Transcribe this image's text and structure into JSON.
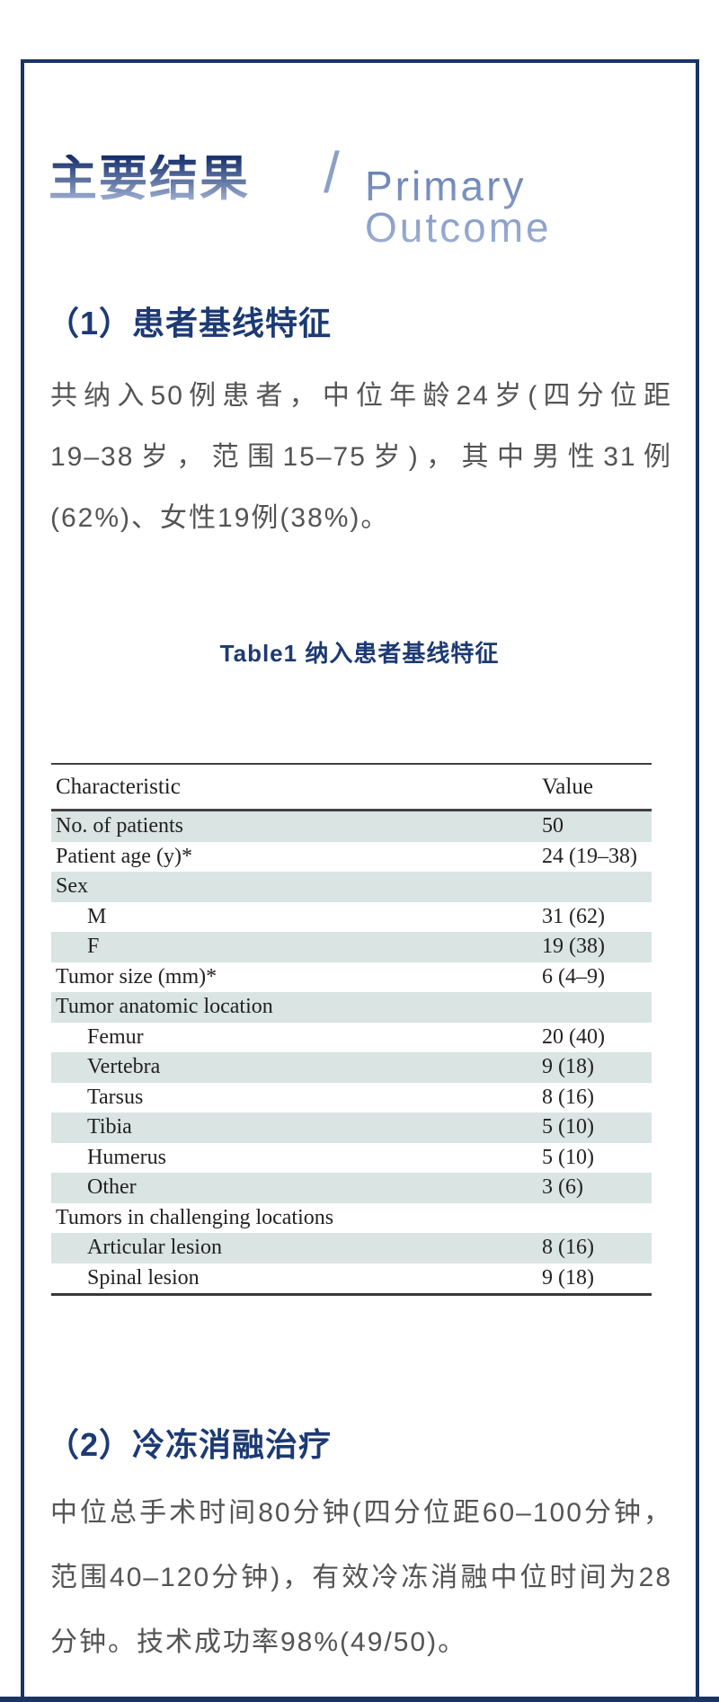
{
  "colors": {
    "frame_navy": "#1a3464",
    "heading_navy": "#1c3a74",
    "title_gradient_top": "#16306b",
    "title_gradient_bottom": "#a5b6d8",
    "title_en_blue": "#7f96c2",
    "body_gray": "#545454",
    "table_row_shade": "#d9e4e3"
  },
  "header": {
    "title_cn": "主要结果",
    "divider": "/",
    "title_en": "Primary Outcome"
  },
  "section1": {
    "heading": "（1）患者基线特征",
    "lines": [
      "共纳入50例患者，中位年龄24岁(四分位距",
      "19–38岁，范围15–75岁)，其中男性31例",
      "(62%)、女性19例(38%)。"
    ]
  },
  "table_caption": "Table1 纳入患者基线特征",
  "table": {
    "columns": [
      "Characteristic",
      "Value"
    ],
    "rows": [
      {
        "label": "No. of patients",
        "value": "50",
        "indent": false,
        "shaded": true
      },
      {
        "label": "Patient age (y)*",
        "value": "24 (19–38)",
        "indent": false,
        "shaded": false
      },
      {
        "label": "Sex",
        "value": "",
        "indent": false,
        "shaded": true
      },
      {
        "label": "M",
        "value": "31 (62)",
        "indent": true,
        "shaded": false
      },
      {
        "label": "F",
        "value": "19 (38)",
        "indent": true,
        "shaded": true
      },
      {
        "label": "Tumor size (mm)*",
        "value": "6 (4–9)",
        "indent": false,
        "shaded": false
      },
      {
        "label": "Tumor anatomic location",
        "value": "",
        "indent": false,
        "shaded": true
      },
      {
        "label": "Femur",
        "value": "20 (40)",
        "indent": true,
        "shaded": false
      },
      {
        "label": "Vertebra",
        "value": "9 (18)",
        "indent": true,
        "shaded": true
      },
      {
        "label": "Tarsus",
        "value": "8 (16)",
        "indent": true,
        "shaded": false
      },
      {
        "label": "Tibia",
        "value": "5 (10)",
        "indent": true,
        "shaded": true
      },
      {
        "label": "Humerus",
        "value": "5 (10)",
        "indent": true,
        "shaded": false
      },
      {
        "label": "Other",
        "value": "3 (6)",
        "indent": true,
        "shaded": true
      },
      {
        "label": "Tumors in challenging locations",
        "value": "",
        "indent": false,
        "shaded": false
      },
      {
        "label": "Articular lesion",
        "value": "8 (16)",
        "indent": true,
        "shaded": true
      },
      {
        "label": "Spinal lesion",
        "value": "9 (18)",
        "indent": true,
        "shaded": false
      }
    ]
  },
  "section2": {
    "heading": "（2）冷冻消融治疗",
    "lines": [
      "中位总手术时间80分钟(四分位距60–100分钟，",
      "范围40–120分钟)，有效冷冻消融中位时间为28",
      "分钟。技术成功率98%(49/50)。"
    ]
  }
}
